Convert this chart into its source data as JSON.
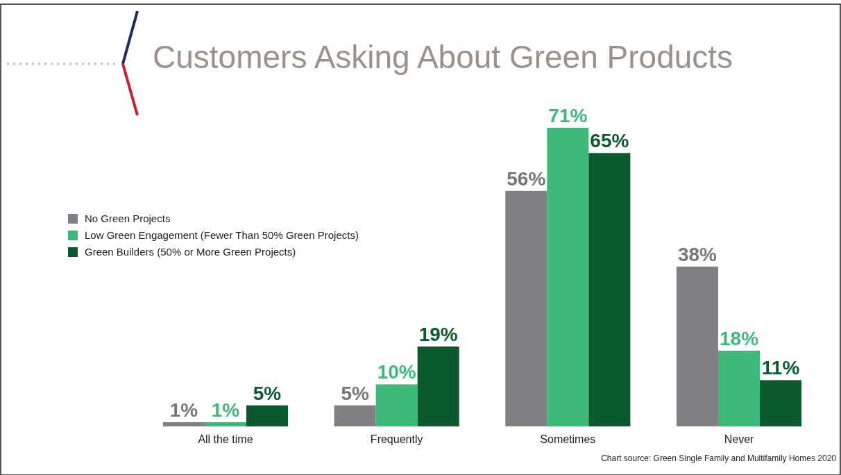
{
  "chart_data": {
    "type": "bar",
    "title": "Customers Asking About Green Products",
    "categories": [
      "All the time",
      "Frequently",
      "Sometimes",
      "Never"
    ],
    "series": [
      {
        "name": "No Green Projects",
        "color": "#818085",
        "values": [
          1,
          5,
          56,
          38
        ],
        "value_labels": [
          "1%",
          "5%",
          "56%",
          "38%"
        ]
      },
      {
        "name": "Low Green Engagement (Fewer Than 50% Green Projects)",
        "color": "#3dba7a",
        "values": [
          1,
          10,
          71,
          18
        ],
        "value_labels": [
          "1%",
          "10%",
          "71%",
          "18%"
        ]
      },
      {
        "name": "Green Builders (50% or More Green Projects)",
        "color": "#0b5a2e",
        "values": [
          5,
          19,
          65,
          11
        ],
        "value_labels": [
          "5%",
          "19%",
          "65%",
          "11%"
        ]
      }
    ],
    "legend": "left",
    "annotations": [
      "Chart source: Green Single Family and Multifamily Homes 2020"
    ]
  }
}
